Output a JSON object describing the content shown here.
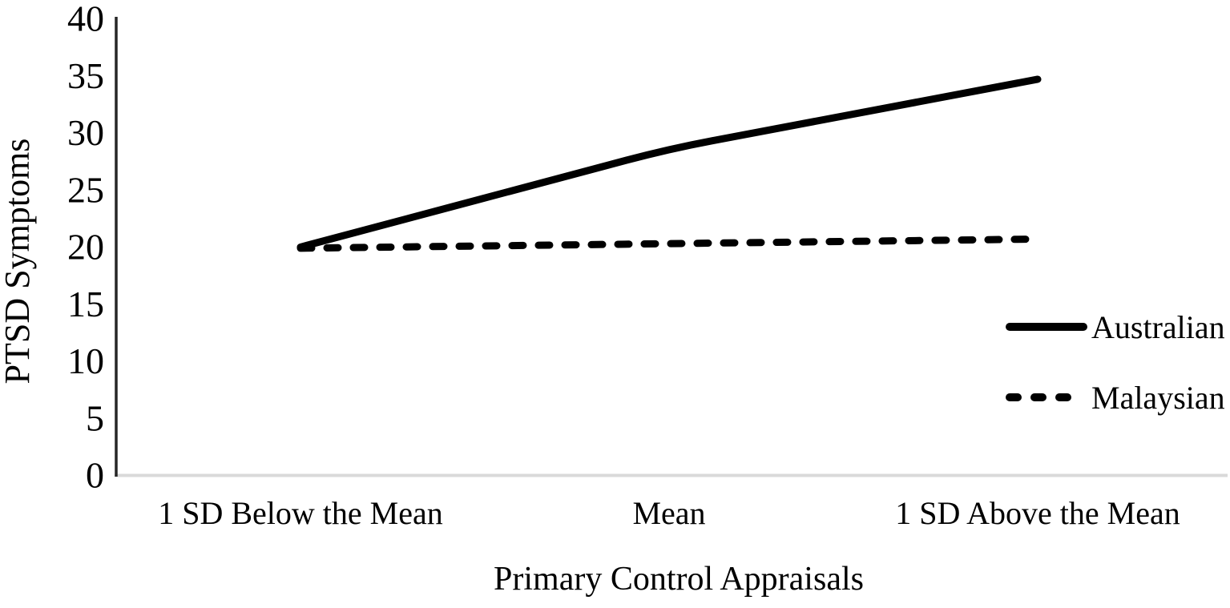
{
  "chart_data": {
    "type": "line",
    "title": "",
    "xlabel": "Primary Control Appraisals",
    "ylabel": "PTSD Symptoms",
    "categories": [
      "1 SD Below the Mean",
      "Mean",
      "1 SD Above the Mean"
    ],
    "series": [
      {
        "name": "Australian",
        "line_style": "solid",
        "values": [
          19.9,
          28.5,
          34.6
        ]
      },
      {
        "name": "Malaysian",
        "line_style": "dashed",
        "values": [
          19.8,
          20.2,
          20.6
        ]
      }
    ],
    "ylim": [
      0,
      40
    ],
    "yticks": [
      0,
      5,
      10,
      15,
      20,
      25,
      30,
      35,
      40
    ],
    "grid": false,
    "legend_position": "right-middle",
    "colors": {
      "line": "#000000",
      "text": "#000000",
      "y_axis": "#262626",
      "x_axis": "#d9d9d9"
    }
  }
}
